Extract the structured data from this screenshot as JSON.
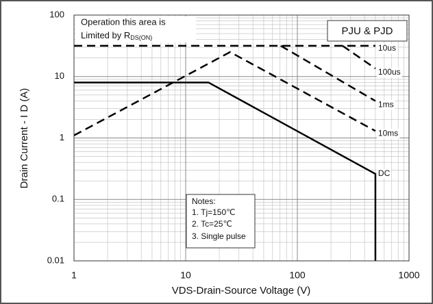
{
  "chart_data": {
    "type": "line",
    "xlabel": "VDS-Drain-Source Voltage (V)",
    "ylabel": "Drain Current - I D (A)",
    "xscale": "log",
    "yscale": "log",
    "xlim": [
      1,
      1000
    ],
    "ylim": [
      0.01,
      100
    ],
    "xticks": [
      1,
      10,
      100,
      1000
    ],
    "yticks": [
      0.01,
      0.1,
      1,
      10,
      100
    ],
    "grid": true,
    "series": [
      {
        "name": "10us",
        "color": "#000000",
        "dashed": true,
        "x": [
          1,
          500
        ],
        "values": [
          31.6,
          31.6
        ]
      },
      {
        "name": "100us",
        "color": "#000000",
        "dashed": true,
        "x": [
          254,
          500
        ],
        "values": [
          31.6,
          13.5
        ]
      },
      {
        "name": "1ms",
        "color": "#000000",
        "dashed": true,
        "x": [
          71,
          500
        ],
        "values": [
          31.6,
          4.0
        ]
      },
      {
        "name": "10ms",
        "color": "#000000",
        "dashed": true,
        "x": [
          1,
          25,
          500
        ],
        "values": [
          1.1,
          25,
          1.3
        ]
      },
      {
        "name": "DC",
        "color": "#000000",
        "dashed": false,
        "x": [
          1,
          16,
          500,
          500
        ],
        "values": [
          8,
          8,
          0.26,
          0.01
        ]
      }
    ],
    "annotation": {
      "line1": "Operation this area is",
      "line2": "Limited  by R",
      "sub": "DS(ON)"
    },
    "legend_box": "PJU & PJD",
    "notes": {
      "title": "Notes:",
      "items": [
        "1. Tj=150℃",
        "2. Tc=25℃",
        "3. Single pulse"
      ]
    }
  }
}
